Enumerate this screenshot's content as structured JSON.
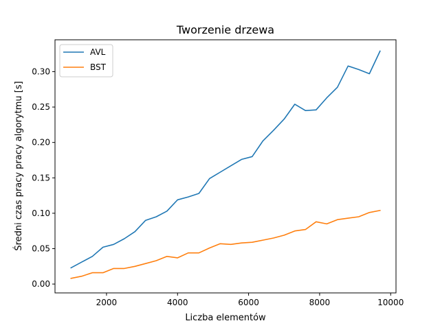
{
  "chart_data": {
    "type": "line",
    "title": "Tworzenie drzewa",
    "xlabel": "Liczba elementów",
    "ylabel": "Średni czas pracy pracy algorytmu [s]",
    "xlim": [
      550,
      10150
    ],
    "ylim": [
      -0.0125,
      0.345
    ],
    "xticks": [
      2000,
      4000,
      6000,
      8000,
      10000
    ],
    "xtick_labels": [
      "2000",
      "4000",
      "6000",
      "8000",
      "10000"
    ],
    "yticks": [
      0.0,
      0.05,
      0.1,
      0.15,
      0.2,
      0.25,
      0.3
    ],
    "ytick_labels": [
      "0.00",
      "0.05",
      "0.10",
      "0.15",
      "0.20",
      "0.25",
      "0.30"
    ],
    "grid": false,
    "legend_position": "top-left",
    "x": [
      1000,
      1300,
      1600,
      1900,
      2200,
      2500,
      2800,
      3100,
      3400,
      3700,
      4000,
      4300,
      4600,
      4900,
      5200,
      5500,
      5800,
      6100,
      6400,
      6700,
      7000,
      7300,
      7600,
      7900,
      8200,
      8500,
      8800,
      9100,
      9400,
      9700
    ],
    "series": [
      {
        "name": "AVL",
        "color": "#1f77b4",
        "values": [
          0.023,
          0.031,
          0.039,
          0.052,
          0.056,
          0.064,
          0.074,
          0.09,
          0.095,
          0.103,
          0.119,
          0.123,
          0.128,
          0.149,
          0.158,
          0.167,
          0.176,
          0.18,
          0.202,
          0.217,
          0.233,
          0.254,
          0.245,
          0.246,
          0.263,
          0.278,
          0.308,
          0.303,
          0.297,
          0.329
        ]
      },
      {
        "name": "BST",
        "color": "#ff7f0e",
        "values": [
          0.008,
          0.011,
          0.016,
          0.016,
          0.022,
          0.022,
          0.025,
          0.029,
          0.033,
          0.039,
          0.037,
          0.044,
          0.044,
          0.051,
          0.057,
          0.056,
          0.058,
          0.059,
          0.062,
          0.065,
          0.069,
          0.075,
          0.077,
          0.088,
          0.085,
          0.091,
          0.093,
          0.095,
          0.101,
          0.104
        ]
      }
    ]
  }
}
